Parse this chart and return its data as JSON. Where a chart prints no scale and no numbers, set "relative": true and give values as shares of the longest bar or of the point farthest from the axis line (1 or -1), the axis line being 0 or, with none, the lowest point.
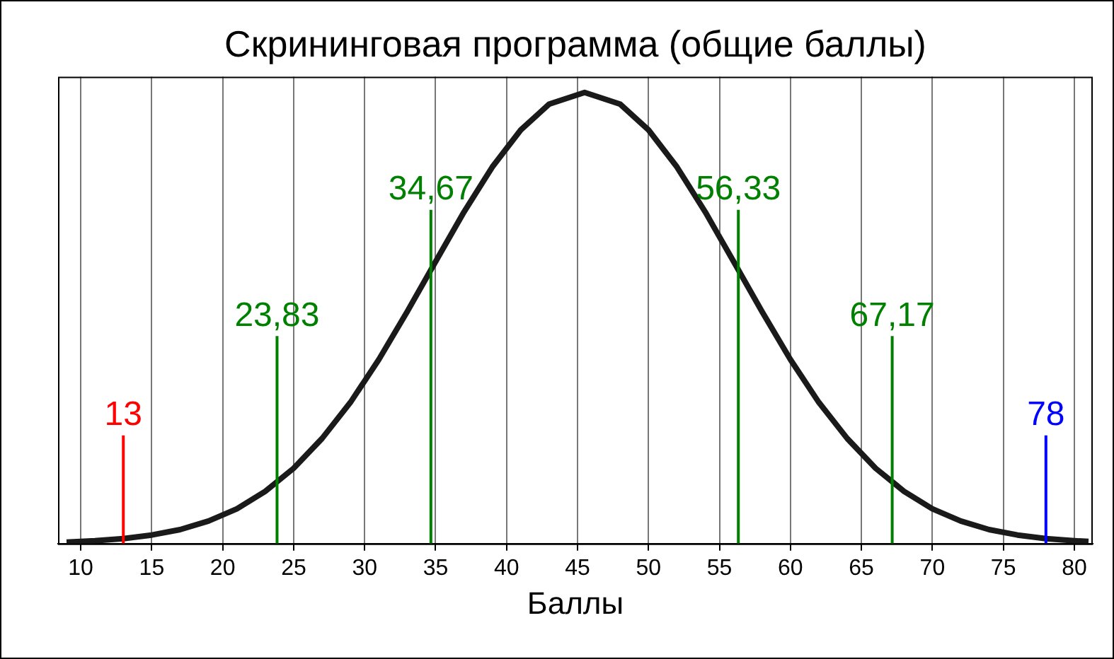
{
  "chart_data": {
    "type": "line",
    "title": "Скрининговая программа (общие баллы)",
    "xlabel": "Баллы",
    "relative": true,
    "x": [
      9,
      11,
      13,
      15,
      17,
      19,
      21,
      23,
      25,
      27,
      29,
      31,
      33,
      35,
      37,
      39,
      41,
      43,
      45.5,
      48,
      50,
      52,
      54,
      56,
      58,
      60,
      62,
      64,
      66,
      68,
      70,
      72,
      74,
      76,
      78,
      80,
      81
    ],
    "series": [
      {
        "color": "#1a1a1a",
        "values": [
          0.0034,
          0.0063,
          0.011,
          0.019,
          0.031,
          0.05,
          0.077,
          0.116,
          0.167,
          0.233,
          0.313,
          0.408,
          0.514,
          0.625,
          0.735,
          0.835,
          0.917,
          0.974,
          1,
          0.974,
          0.917,
          0.835,
          0.735,
          0.625,
          0.514,
          0.408,
          0.313,
          0.233,
          0.167,
          0.116,
          0.077,
          0.05,
          0.031,
          0.019,
          0.011,
          0.0063,
          0.0046
        ]
      }
    ],
    "xlim": [
      8.4,
      81.3
    ],
    "xticks": [
      10,
      15,
      20,
      25,
      30,
      35,
      40,
      45,
      50,
      55,
      60,
      65,
      70,
      75,
      80
    ],
    "ref_lines": [
      {
        "axis": "x",
        "value": 13,
        "label": "13",
        "color": "#ff0000"
      },
      {
        "axis": "x",
        "value": 23.83,
        "label": "23,83",
        "color": "#008000"
      },
      {
        "axis": "x",
        "value": 34.67,
        "label": "34,67",
        "color": "#008000"
      },
      {
        "axis": "x",
        "value": 56.33,
        "label": "56,33",
        "color": "#008000"
      },
      {
        "axis": "x",
        "value": 67.17,
        "label": "67,17",
        "color": "#008000"
      },
      {
        "axis": "x",
        "value": 78,
        "label": "78",
        "color": "#0000ff"
      }
    ],
    "grid": "x",
    "legend": false,
    "marker": "none",
    "line_style": "solid"
  }
}
